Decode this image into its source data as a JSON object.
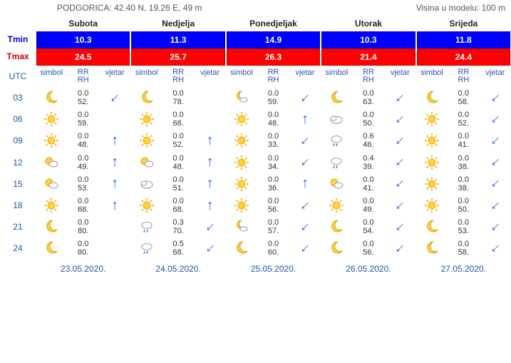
{
  "header": {
    "location": "PODGORICA: 42.40 N, 19.26 E, 49 m",
    "model_height": "Visina u modelu: 100 m",
    "tmin_label": "Tmin",
    "tmax_label": "Tmax",
    "utc_label": "UTC",
    "col_labels": {
      "simbol": "simbol",
      "rr": "RR",
      "rh": "RH",
      "vjetar": "vjetar"
    }
  },
  "colors": {
    "tmin_bg": "#0000ff",
    "tmax_bg": "#ff0000",
    "link": "#2255aa",
    "arrow": "#2266dd"
  },
  "hours": [
    "03",
    "06",
    "09",
    "12",
    "15",
    "18",
    "21",
    "24"
  ],
  "days": [
    {
      "name": "Subota",
      "date": "23.05.2020.",
      "tmin": "10.3",
      "tmax": "24.5",
      "rows": [
        {
          "icon": "moon",
          "rr": "0.0",
          "rh": "52.",
          "wind": 225
        },
        {
          "icon": "sun",
          "rr": "0.0",
          "rh": "59.",
          "wind": null
        },
        {
          "icon": "sun",
          "rr": "0.0",
          "rh": "48.",
          "wind": 0
        },
        {
          "icon": "partly",
          "rr": "0.0",
          "rh": "49.",
          "wind": 0
        },
        {
          "icon": "partly",
          "rr": "0.0",
          "rh": "53.",
          "wind": 0
        },
        {
          "icon": "sun",
          "rr": "0.0",
          "rh": "68.",
          "wind": 0
        },
        {
          "icon": "moon",
          "rr": "0.0",
          "rh": "80.",
          "wind": null
        },
        {
          "icon": "moon",
          "rr": "0.0",
          "rh": "80.",
          "wind": null
        }
      ]
    },
    {
      "name": "Nedjelja",
      "date": "24.05.2020.",
      "tmin": "11.3",
      "tmax": "25.7",
      "rows": [
        {
          "icon": "moon",
          "rr": "0.0",
          "rh": "78.",
          "wind": null
        },
        {
          "icon": "sun",
          "rr": "0.0",
          "rh": "68.",
          "wind": null
        },
        {
          "icon": "sun",
          "rr": "0.0",
          "rh": "52.",
          "wind": 0
        },
        {
          "icon": "partly",
          "rr": "0.0",
          "rh": "48.",
          "wind": 0
        },
        {
          "icon": "cloud",
          "rr": "0.0",
          "rh": "51.",
          "wind": 0
        },
        {
          "icon": "sun",
          "rr": "0.0",
          "rh": "68.",
          "wind": 0
        },
        {
          "icon": "rain",
          "rr": "0.3",
          "rh": "70.",
          "wind": 225
        },
        {
          "icon": "rain",
          "rr": "0.5",
          "rh": "68.",
          "wind": 225
        }
      ]
    },
    {
      "name": "Ponedjeljak",
      "date": "25.05.2020.",
      "tmin": "14.9",
      "tmax": "26.3",
      "rows": [
        {
          "icon": "mooncloud",
          "rr": "0.0",
          "rh": "59.",
          "wind": 225
        },
        {
          "icon": "sun",
          "rr": "0.0",
          "rh": "48.",
          "wind": 0
        },
        {
          "icon": "sun",
          "rr": "0.0",
          "rh": "33.",
          "wind": 225
        },
        {
          "icon": "sun",
          "rr": "0.0",
          "rh": "34.",
          "wind": 225
        },
        {
          "icon": "sun",
          "rr": "0.0",
          "rh": "36.",
          "wind": 0
        },
        {
          "icon": "sun",
          "rr": "0.0",
          "rh": "56.",
          "wind": 225
        },
        {
          "icon": "mooncloud",
          "rr": "0.0",
          "rh": "57.",
          "wind": 225
        },
        {
          "icon": "moon",
          "rr": "0.0",
          "rh": "60.",
          "wind": 225
        }
      ]
    },
    {
      "name": "Utorak",
      "date": "26.05.2020.",
      "tmin": "10.3",
      "tmax": "21.4",
      "rows": [
        {
          "icon": "moon",
          "rr": "0.0",
          "rh": "63.",
          "wind": 225
        },
        {
          "icon": "cloud",
          "rr": "0.0",
          "rh": "50.",
          "wind": 225
        },
        {
          "icon": "rain",
          "rr": "0.6",
          "rh": "46.",
          "wind": 225
        },
        {
          "icon": "rain",
          "rr": "0.4",
          "rh": "39.",
          "wind": 225
        },
        {
          "icon": "partly",
          "rr": "0.0",
          "rh": "41.",
          "wind": 225
        },
        {
          "icon": "sun",
          "rr": "0.0",
          "rh": "49.",
          "wind": 225
        },
        {
          "icon": "moon",
          "rr": "0.0",
          "rh": "54.",
          "wind": 225
        },
        {
          "icon": "moon",
          "rr": "0.0",
          "rh": "56.",
          "wind": 225
        }
      ]
    },
    {
      "name": "Srijeda",
      "date": "27.05.2020.",
      "tmin": "11.8",
      "tmax": "24.4",
      "rows": [
        {
          "icon": "moon",
          "rr": "0.0",
          "rh": "58.",
          "wind": 225
        },
        {
          "icon": "sun",
          "rr": "0.0",
          "rh": "52.",
          "wind": 225
        },
        {
          "icon": "sun",
          "rr": "0.0",
          "rh": "41.",
          "wind": 225
        },
        {
          "icon": "sun",
          "rr": "0.0",
          "rh": "38.",
          "wind": 225
        },
        {
          "icon": "sun",
          "rr": "0.0",
          "rh": "38.",
          "wind": 225
        },
        {
          "icon": "sun",
          "rr": "0.0",
          "rh": "50.",
          "wind": 225
        },
        {
          "icon": "moon",
          "rr": "0.0",
          "rh": "53.",
          "wind": 225
        },
        {
          "icon": "moon",
          "rr": "0.0",
          "rh": "58.",
          "wind": 225
        }
      ]
    }
  ]
}
